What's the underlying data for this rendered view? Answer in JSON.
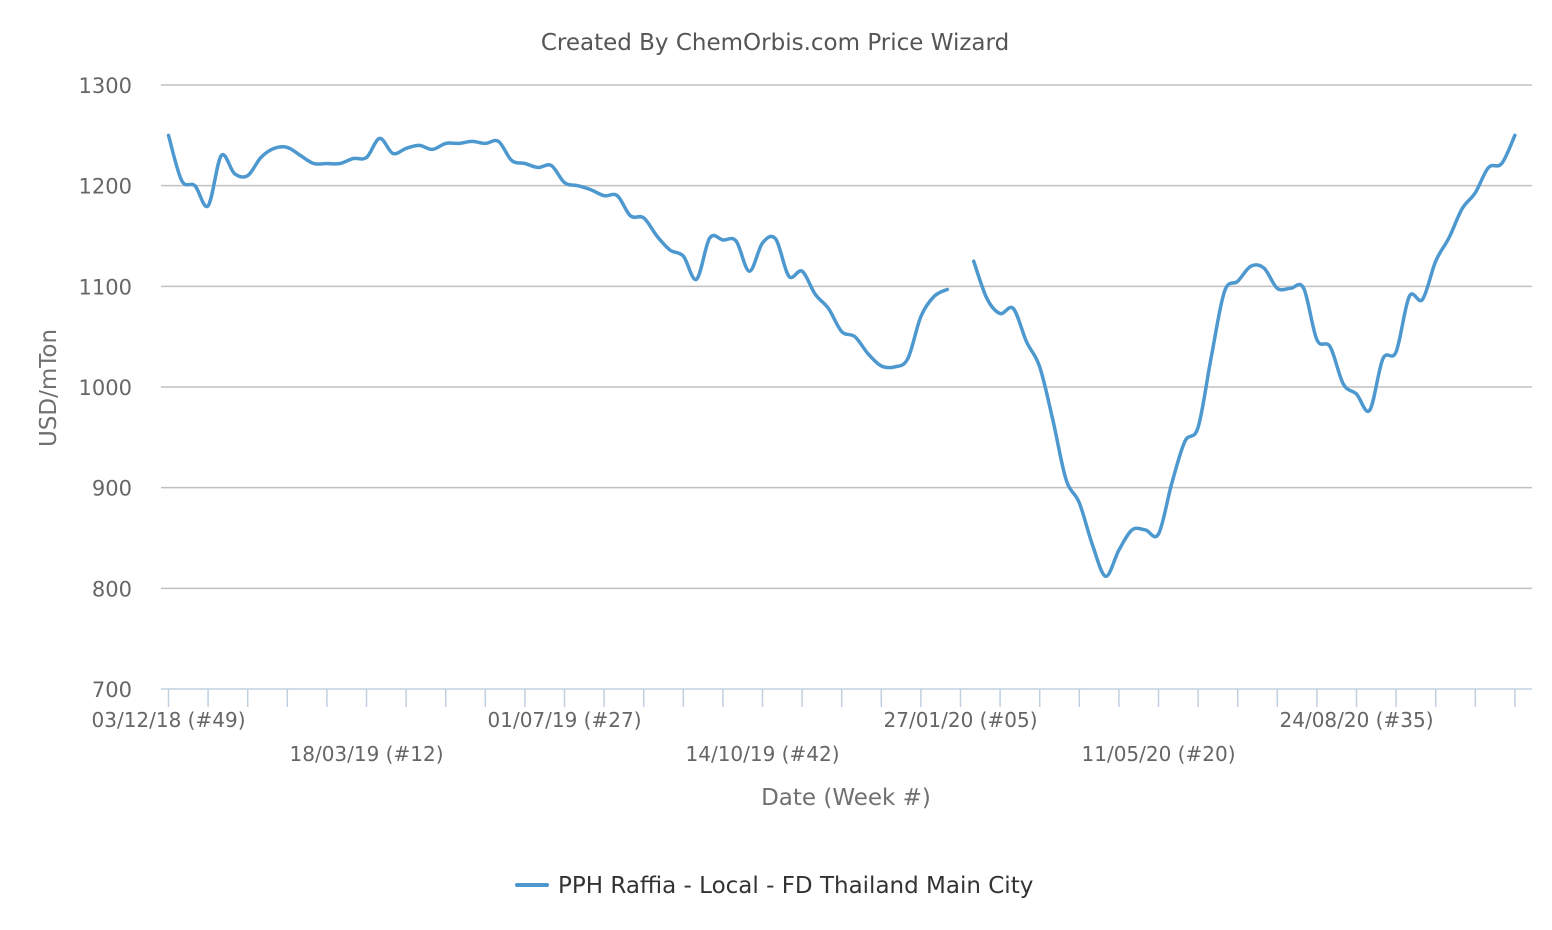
{
  "chart_data": {
    "type": "line",
    "title": "Created By ChemOrbis.com Price Wizard",
    "xlabel": "Date (Week #)",
    "ylabel": "USD/mTon",
    "ylim": [
      700,
      1300
    ],
    "yticks": [
      700,
      800,
      900,
      1000,
      1100,
      1200,
      1300
    ],
    "grid": true,
    "legend_position": "bottom-center",
    "x_start_date": "03/12/18",
    "x_step_weeks": 1,
    "x_ticks": [
      {
        "week_index": 0,
        "label": "03/12/18 (#49)",
        "row": 0
      },
      {
        "week_index": 15,
        "label": "18/03/19 (#12)",
        "row": 1
      },
      {
        "week_index": 30,
        "label": "01/07/19 (#27)",
        "row": 0
      },
      {
        "week_index": 45,
        "label": "14/10/19 (#42)",
        "row": 1
      },
      {
        "week_index": 60,
        "label": "27/01/20 (#05)",
        "row": 0
      },
      {
        "week_index": 75,
        "label": "11/05/20 (#20)",
        "row": 1
      },
      {
        "week_index": 90,
        "label": "24/08/20 (#35)",
        "row": 0
      }
    ],
    "series": [
      {
        "name": "PPH Raffia - Local - FD Thailand Main City",
        "color": "#4d98cf",
        "values": [
          1250,
          1205,
          1200,
          1180,
          1230,
          1212,
          1210,
          1228,
          1237,
          1238,
          1230,
          1222,
          1222,
          1222,
          1227,
          1228,
          1247,
          1232,
          1237,
          1240,
          1236,
          1242,
          1242,
          1244,
          1242,
          1244,
          1225,
          1222,
          1218,
          1220,
          1203,
          1200,
          1196,
          1190,
          1190,
          1170,
          1168,
          1150,
          1136,
          1130,
          1107,
          1148,
          1146,
          1145,
          1115,
          1143,
          1147,
          1110,
          1115,
          1092,
          1078,
          1055,
          1050,
          1033,
          1021,
          1020,
          1028,
          1070,
          1090,
          1097,
          null,
          1125,
          1088,
          1073,
          1078,
          1045,
          1020,
          967,
          908,
          885,
          843,
          812,
          838,
          858,
          858,
          854,
          904,
          946,
          960,
          1030,
          1095,
          1105,
          1120,
          1118,
          1098,
          1098,
          1098,
          1047,
          1040,
          1003,
          993,
          977,
          1028,
          1035,
          1090,
          1087,
          1125,
          1148,
          1177,
          1193,
          1218,
          1222,
          1250
        ]
      }
    ]
  }
}
